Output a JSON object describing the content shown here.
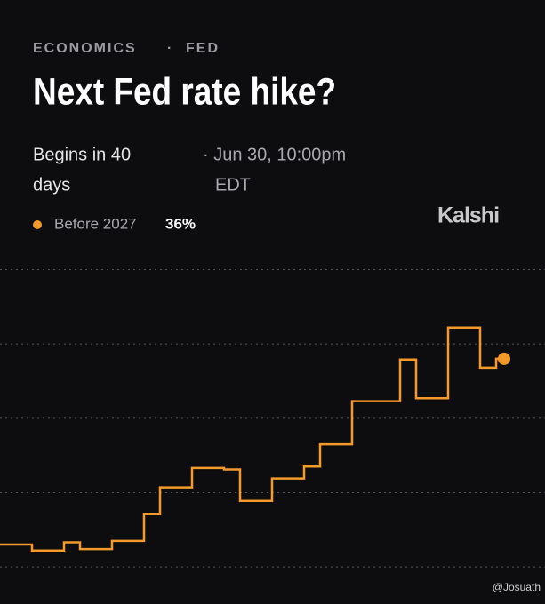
{
  "header": {
    "category": "ECONOMICS",
    "separator": "·",
    "subcategory": "FED",
    "title": "Next Fed rate hike?",
    "begins_line1": "Begins in 40",
    "begins_line2": "days",
    "date_line1": "· Jun 30, 10:00pm",
    "date_line2": "EDT",
    "brand": "Kalshi"
  },
  "chart_data": {
    "type": "line",
    "step": true,
    "categories": [
      null,
      null,
      null,
      null,
      null,
      null,
      null,
      null,
      null,
      null,
      null,
      null,
      null,
      null,
      null,
      null,
      null,
      null,
      null,
      null,
      null,
      null,
      null,
      null,
      null,
      null,
      null,
      null,
      null,
      null,
      null,
      null
    ],
    "series": [
      {
        "name": "Before 2027",
        "color": "#f39a2b",
        "values": [
          11.0,
          11.0,
          10.2,
          10.2,
          11.3,
          10.4,
          10.4,
          11.5,
          11.5,
          15.1,
          18.7,
          18.7,
          21.3,
          21.3,
          21.1,
          16.9,
          16.9,
          19.9,
          19.9,
          21.5,
          24.5,
          24.5,
          30.3,
          30.3,
          30.3,
          35.9,
          30.7,
          30.7,
          40.2,
          40.2,
          34.8,
          36
        ],
        "latest": {
          "value": 36,
          "label": "36%"
        }
      }
    ],
    "ylim": [
      3,
      52
    ],
    "yticks": [
      8,
      18,
      28,
      38,
      48
    ],
    "grid": true
  },
  "watermark": "@Josuath"
}
